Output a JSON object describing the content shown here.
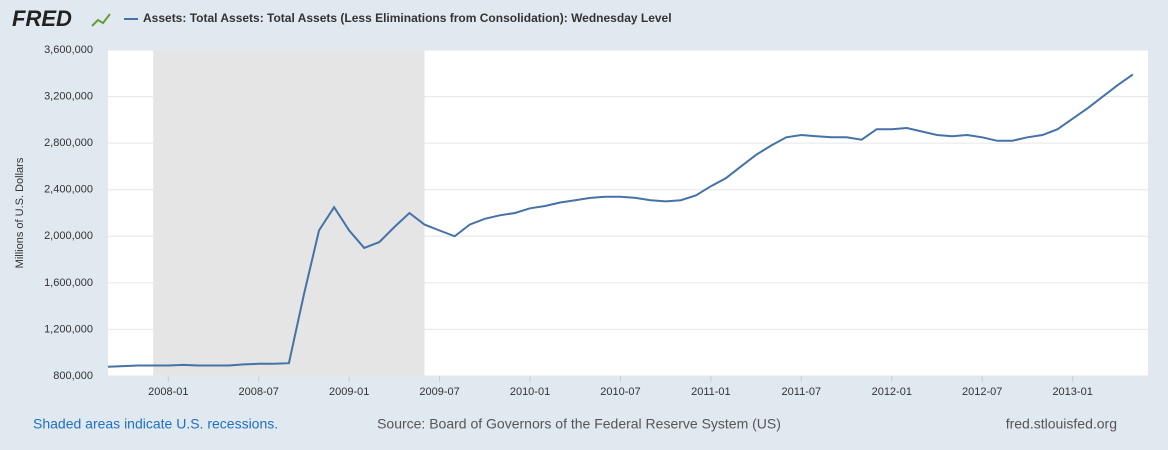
{
  "logo": "FRED",
  "notes": {
    "recession_note": "Shaded areas indicate U.S. recessions.",
    "source": "Source: Board of Governors of the Federal Reserve System (US)",
    "site": "fred.stlouisfed.org"
  },
  "chart_data": {
    "type": "line",
    "y_label": "Millions of U.S. Dollars",
    "x": [
      "2007-09",
      "2007-10",
      "2007-11",
      "2007-12",
      "2008-01",
      "2008-02",
      "2008-03",
      "2008-04",
      "2008-05",
      "2008-06",
      "2008-07",
      "2008-08",
      "2008-09",
      "2008-10",
      "2008-11",
      "2008-12",
      "2009-01",
      "2009-02",
      "2009-03",
      "2009-04",
      "2009-05",
      "2009-06",
      "2009-07",
      "2009-08",
      "2009-09",
      "2009-10",
      "2009-11",
      "2009-12",
      "2010-01",
      "2010-02",
      "2010-03",
      "2010-04",
      "2010-05",
      "2010-06",
      "2010-07",
      "2010-08",
      "2010-09",
      "2010-10",
      "2010-11",
      "2010-12",
      "2011-01",
      "2011-02",
      "2011-03",
      "2011-04",
      "2011-05",
      "2011-06",
      "2011-07",
      "2011-08",
      "2011-09",
      "2011-10",
      "2011-11",
      "2011-12",
      "2012-01",
      "2012-02",
      "2012-03",
      "2012-04",
      "2012-05",
      "2012-06",
      "2012-07",
      "2012-08",
      "2012-09",
      "2012-10",
      "2012-11",
      "2012-12",
      "2013-01",
      "2013-02",
      "2013-03",
      "2013-04",
      "2013-05"
    ],
    "series": [
      {
        "name": "Assets: Total Assets: Total Assets (Less Eliminations from Consolidation): Wednesday Level",
        "color": "#4572a7",
        "values": [
          880000,
          885000,
          890000,
          890000,
          890000,
          895000,
          890000,
          890000,
          890000,
          900000,
          905000,
          905000,
          910000,
          1500000,
          2050000,
          2250000,
          2050000,
          1900000,
          1950000,
          2080000,
          2200000,
          2100000,
          2050000,
          2000000,
          2100000,
          2150000,
          2180000,
          2200000,
          2240000,
          2260000,
          2290000,
          2310000,
          2330000,
          2340000,
          2340000,
          2330000,
          2310000,
          2300000,
          2310000,
          2350000,
          2430000,
          2500000,
          2600000,
          2700000,
          2780000,
          2850000,
          2870000,
          2860000,
          2850000,
          2850000,
          2830000,
          2920000,
          2920000,
          2930000,
          2900000,
          2870000,
          2860000,
          2870000,
          2850000,
          2820000,
          2820000,
          2850000,
          2870000,
          2920000,
          3010000,
          3100000,
          3200000,
          3300000,
          3390000
        ]
      }
    ],
    "xlim": [
      "2007-09",
      "2013-06"
    ],
    "xticks": [
      "2008-01",
      "2008-07",
      "2009-01",
      "2009-07",
      "2010-01",
      "2010-07",
      "2011-01",
      "2011-07",
      "2012-01",
      "2012-07",
      "2013-01"
    ],
    "ylim": [
      800000,
      3600000
    ],
    "yticks": [
      {
        "value": 800000,
        "label": "800,000"
      },
      {
        "value": 1200000,
        "label": "1,200,000"
      },
      {
        "value": 1600000,
        "label": "1,600,000"
      },
      {
        "value": 2000000,
        "label": "2,000,000"
      },
      {
        "value": 2400000,
        "label": "2,400,000"
      },
      {
        "value": 2800000,
        "label": "2,800,000"
      },
      {
        "value": 3200000,
        "label": "3,200,000"
      },
      {
        "value": 3600000,
        "label": "3,600,000"
      }
    ],
    "recessions": [
      {
        "start": "2007-12",
        "end": "2009-06"
      }
    ],
    "grid": true
  }
}
